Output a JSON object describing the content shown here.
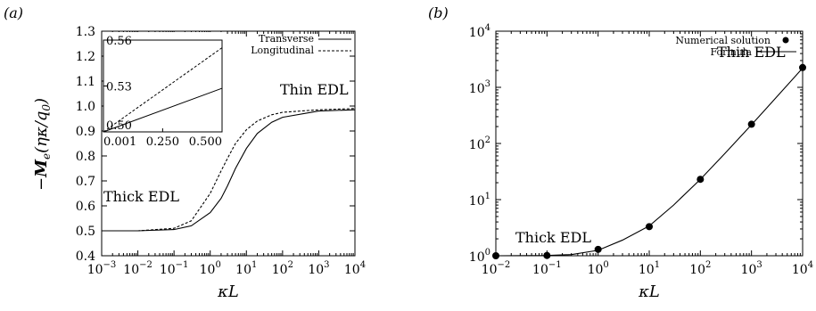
{
  "chart_data": [
    {
      "type": "line",
      "panel_label": "(a)",
      "xlabel": "κL",
      "ylabel": "−M_e(ηκ/q_0)",
      "xscale": "log",
      "xlim": [
        0.001,
        10000
      ],
      "ylim": [
        0.4,
        1.3
      ],
      "x_ticks": [
        {
          "base": "10",
          "exp": "−3"
        },
        {
          "base": "10",
          "exp": "−2"
        },
        {
          "base": "10",
          "exp": "−1"
        },
        {
          "base": "10",
          "exp": "0"
        },
        {
          "base": "10",
          "exp": "1"
        },
        {
          "base": "10",
          "exp": "2"
        },
        {
          "base": "10",
          "exp": "3"
        },
        {
          "base": "10",
          "exp": "4"
        }
      ],
      "y_ticks": [
        "0.4",
        "0.5",
        "0.6",
        "0.7",
        "0.8",
        "0.9",
        "1.0",
        "1.1",
        "1.2",
        "1.3"
      ],
      "series": [
        {
          "name": "Transverse",
          "style": "solid",
          "x": [
            0.001,
            0.01,
            0.1,
            0.3,
            1,
            2,
            3,
            5,
            10,
            20,
            50,
            100,
            1000,
            10000
          ],
          "values": [
            0.5,
            0.5,
            0.505,
            0.52,
            0.573,
            0.63,
            0.68,
            0.75,
            0.83,
            0.89,
            0.935,
            0.955,
            0.98,
            0.985
          ]
        },
        {
          "name": "Longitudinal",
          "style": "dashed",
          "x": [
            0.001,
            0.01,
            0.1,
            0.3,
            1,
            2,
            3,
            5,
            10,
            20,
            50,
            100,
            1000,
            10000
          ],
          "values": [
            0.5,
            0.5,
            0.51,
            0.54,
            0.65,
            0.74,
            0.79,
            0.85,
            0.905,
            0.94,
            0.965,
            0.975,
            0.985,
            0.99
          ]
        }
      ],
      "annotations": [
        "Thick EDL",
        "Thin EDL"
      ],
      "legend_position": "top-right",
      "inset": {
        "xlim": [
          0.001,
          0.5
        ],
        "ylim": [
          0.5,
          0.56
        ],
        "x_ticks": [
          "0.001",
          "0.250",
          "0.500"
        ],
        "y_ticks": [
          "0.50",
          "0.53",
          "0.56"
        ],
        "series": [
          {
            "name": "Transverse",
            "style": "solid",
            "x": [
              0.001,
              0.5
            ],
            "values": [
              0.5,
              0.5285
            ]
          },
          {
            "name": "Longitudinal",
            "style": "dashed",
            "x": [
              0.001,
              0.5
            ],
            "values": [
              0.5,
              0.555
            ]
          }
        ]
      }
    },
    {
      "type": "line",
      "panel_label": "(b)",
      "xlabel": "κL",
      "ylabel": "",
      "xscale": "log",
      "yscale": "log",
      "xlim": [
        0.01,
        10000
      ],
      "ylim": [
        1,
        10000
      ],
      "x_ticks": [
        {
          "base": "10",
          "exp": "−2"
        },
        {
          "base": "10",
          "exp": "−1"
        },
        {
          "base": "10",
          "exp": "0"
        },
        {
          "base": "10",
          "exp": "1"
        },
        {
          "base": "10",
          "exp": "2"
        },
        {
          "base": "10",
          "exp": "3"
        },
        {
          "base": "10",
          "exp": "4"
        }
      ],
      "y_ticks": [
        {
          "base": "10",
          "exp": "0"
        },
        {
          "base": "10",
          "exp": "1"
        },
        {
          "base": "10",
          "exp": "2"
        },
        {
          "base": "10",
          "exp": "3"
        },
        {
          "base": "10",
          "exp": "4"
        }
      ],
      "series": [
        {
          "name": "Numerical solution",
          "style": "points",
          "x": [
            0.01,
            0.1,
            1,
            10,
            100,
            1000,
            10000
          ],
          "values": [
            1.0,
            1.01,
            1.3,
            3.3,
            23,
            220,
            2250
          ]
        },
        {
          "name": "Formula",
          "style": "solid",
          "x": [
            0.01,
            0.1,
            0.3,
            1,
            3,
            10,
            30,
            100,
            300,
            1000,
            3000,
            10000
          ],
          "values": [
            1.0,
            1.01,
            1.05,
            1.25,
            1.9,
            3.4,
            8,
            23,
            66,
            215,
            650,
            2200
          ]
        }
      ],
      "annotations": [
        "Thick EDL",
        "Thin EDL"
      ],
      "legend_position": "top-right"
    }
  ]
}
